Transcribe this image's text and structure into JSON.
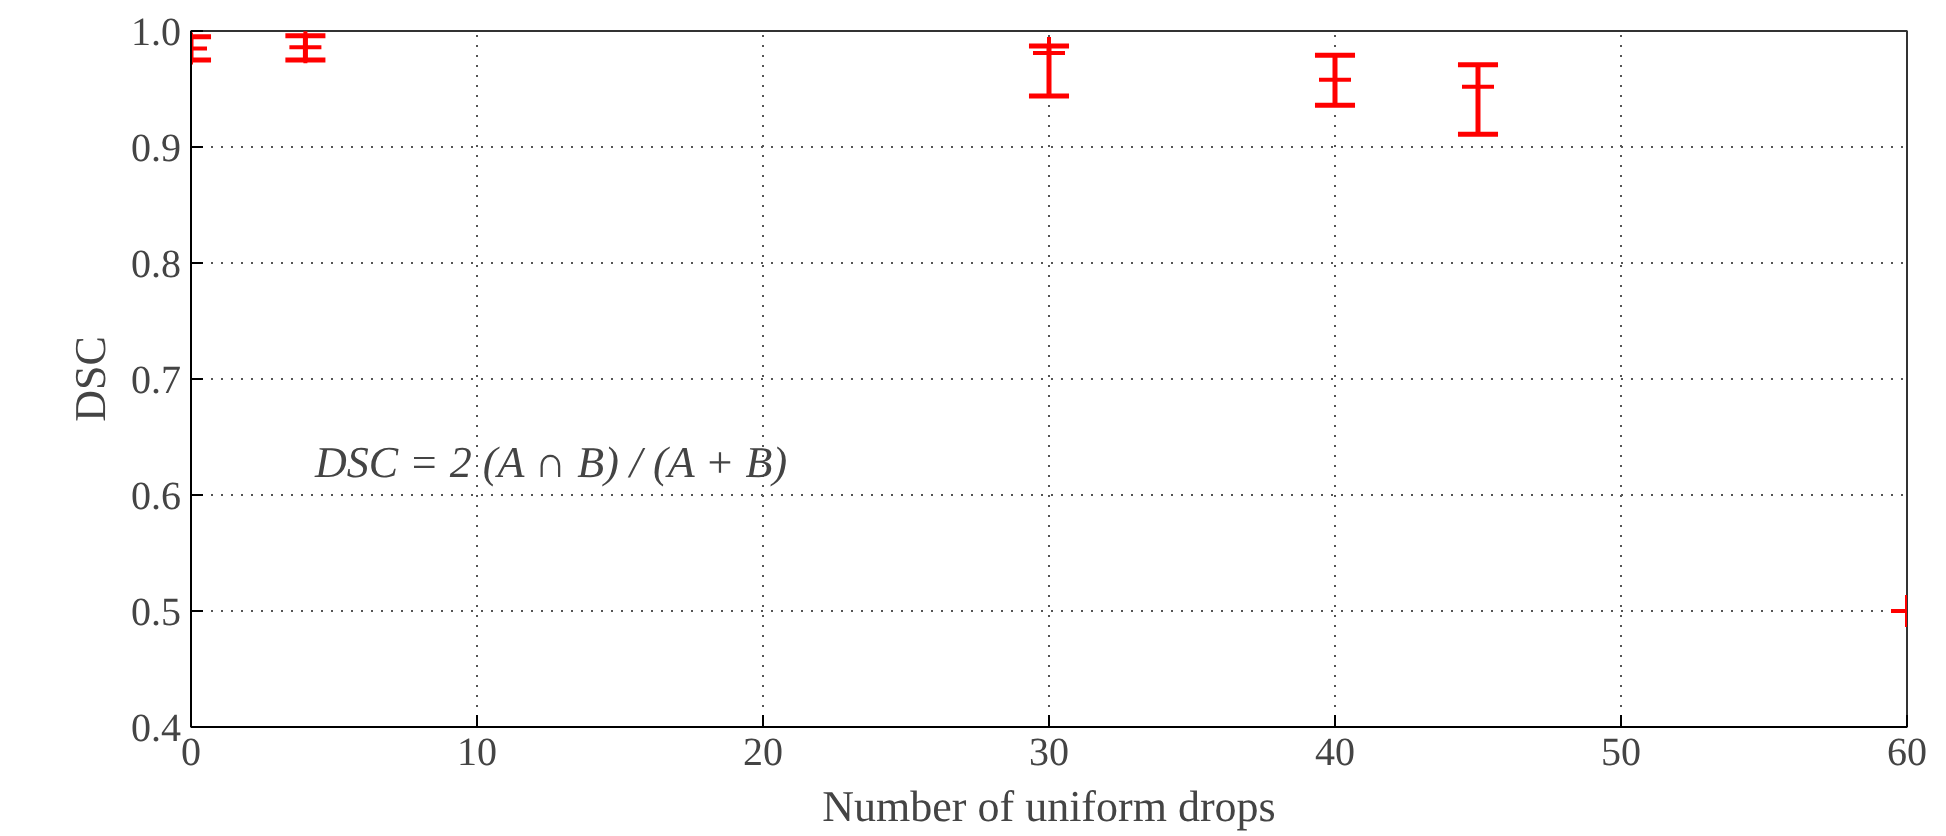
{
  "chart_data": {
    "type": "scatter",
    "xlabel": "Number of uniform drops",
    "ylabel": "DSC",
    "x": [
      0,
      4,
      30,
      40,
      45,
      60
    ],
    "series": [
      {
        "color": "#ff0000",
        "values": [
          0.985,
          0.986,
          0.981,
          0.958,
          0.952,
          0.5
        ],
        "errors": [
          [
            0.975,
            0.995
          ],
          [
            0.975,
            0.996
          ],
          [
            0.944,
            0.987
          ],
          [
            0.936,
            0.979
          ],
          [
            0.911,
            0.971
          ],
          null
        ]
      }
    ],
    "xlim": [
      0,
      60
    ],
    "xticks": [
      0,
      10,
      20,
      30,
      40,
      50,
      60
    ],
    "ylim": [
      0.4,
      1.0
    ],
    "yticks": [
      0.4,
      0.5,
      0.6,
      0.7,
      0.8,
      0.9,
      {
        "value": 1.0,
        "label": "1.0"
      }
    ],
    "grid": true,
    "marker": "cross",
    "annotations": [
      "DSC = 2 (A ∩ B) / (A + B)"
    ]
  }
}
